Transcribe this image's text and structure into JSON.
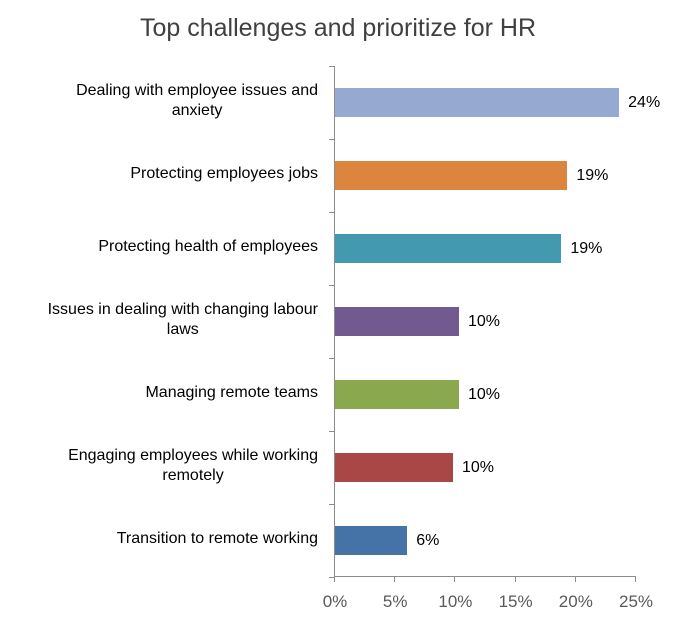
{
  "chart_data": {
    "type": "bar",
    "orientation": "horizontal",
    "title": "Top challenges and prioritize for HR",
    "xlabel": "",
    "ylabel": "",
    "xlim": [
      0,
      25
    ],
    "x_ticks": [
      "0%",
      "5%",
      "10%",
      "15%",
      "20%",
      "25%"
    ],
    "grid": false,
    "legend": null,
    "categories": [
      "Dealing with employee issues and anxiety",
      "Protecting employees jobs",
      "Protecting health of employees",
      "Issues in dealing with changing labour laws",
      "Managing remote teams",
      "Engaging employees while working remotely",
      "Transition to remote working"
    ],
    "values": [
      23.6,
      19.3,
      18.8,
      10.3,
      10.3,
      9.8,
      6.0
    ],
    "data_labels": [
      "24%",
      "19%",
      "19%",
      "10%",
      "10%",
      "10%",
      "6%"
    ],
    "colors": [
      "#95a9d1",
      "#dc853e",
      "#4399b0",
      "#725a91",
      "#8aa94f",
      "#a94646",
      "#4573a7"
    ]
  },
  "rows": [
    {
      "line1": "Dealing with employee issues and",
      "line2": "anxiety",
      "label": "24%",
      "value": 23.6,
      "color": "#95a9d1"
    },
    {
      "line1": "Protecting employees jobs",
      "line2": "",
      "label": "19%",
      "value": 19.3,
      "color": "#dc853e"
    },
    {
      "line1": "Protecting health of employees",
      "line2": "",
      "label": "19%",
      "value": 18.8,
      "color": "#4399b0"
    },
    {
      "line1": "Issues in dealing with changing labour",
      "line2": "laws",
      "label": "10%",
      "value": 10.3,
      "color": "#725a91"
    },
    {
      "line1": "Managing remote teams",
      "line2": "",
      "label": "10%",
      "value": 10.3,
      "color": "#8aa94f"
    },
    {
      "line1": "Engaging employees while working",
      "line2": "remotely",
      "label": "10%",
      "value": 9.8,
      "color": "#a94646"
    },
    {
      "line1": "Transition to remote working",
      "line2": "",
      "label": "6%",
      "value": 6.0,
      "color": "#4573a7"
    }
  ]
}
